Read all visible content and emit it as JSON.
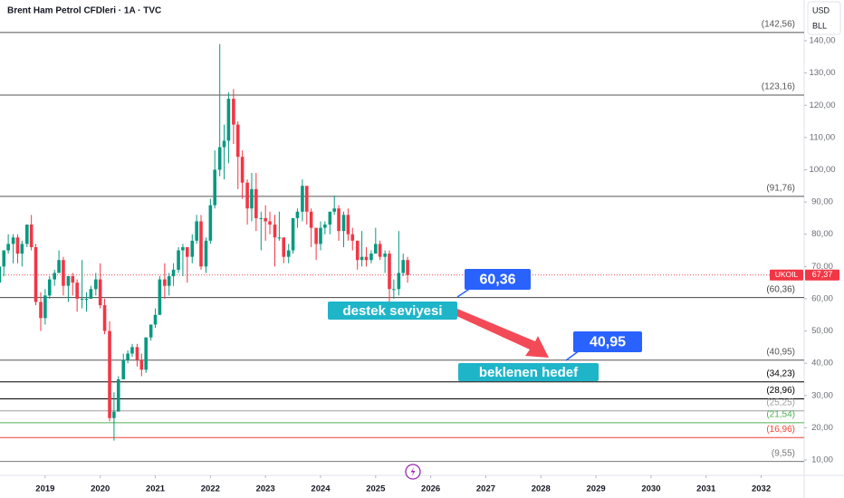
{
  "chart_data": {
    "type": "candlestick",
    "title": "Brent Ham Petrol CFDleri · 1A · TVC",
    "currency": "USD",
    "unit": "BLL",
    "up_color": "#089981",
    "down_color": "#f23645",
    "x": [
      2018.17,
      2018.25,
      2018.33,
      2018.42,
      2018.5,
      2018.58,
      2018.67,
      2018.75,
      2018.83,
      2018.92,
      2019.0,
      2019.08,
      2019.17,
      2019.25,
      2019.33,
      2019.42,
      2019.5,
      2019.58,
      2019.67,
      2019.75,
      2019.83,
      2019.92,
      2020.0,
      2020.08,
      2020.17,
      2020.25,
      2020.33,
      2020.42,
      2020.5,
      2020.58,
      2020.67,
      2020.75,
      2020.83,
      2020.92,
      2021.0,
      2021.08,
      2021.17,
      2021.25,
      2021.33,
      2021.42,
      2021.5,
      2021.58,
      2021.67,
      2021.75,
      2021.83,
      2021.92,
      2022.0,
      2022.08,
      2022.17,
      2022.25,
      2022.33,
      2022.42,
      2022.5,
      2022.58,
      2022.67,
      2022.75,
      2022.83,
      2022.92,
      2023.0,
      2023.08,
      2023.17,
      2023.25,
      2023.33,
      2023.42,
      2023.5,
      2023.58,
      2023.67,
      2023.75,
      2023.83,
      2023.92,
      2024.0,
      2024.08,
      2024.17,
      2024.25,
      2024.33,
      2024.42,
      2024.5,
      2024.58,
      2024.67,
      2024.75,
      2024.83,
      2024.92,
      2025.0,
      2025.08,
      2025.17,
      2025.25,
      2025.33,
      2025.42,
      2025.5,
      2025.58
    ],
    "open": [
      65,
      70,
      75,
      77,
      79,
      74,
      77,
      83,
      76,
      59,
      54,
      61,
      66,
      68,
      72,
      64,
      67,
      65,
      60,
      60,
      60,
      63,
      66,
      58,
      50,
      23,
      25,
      35,
      41,
      43,
      45,
      41,
      38,
      48,
      52,
      55,
      66,
      64,
      67,
      69,
      75,
      76,
      73,
      78,
      84,
      70,
      78,
      89,
      100,
      107,
      109,
      122,
      114,
      104,
      96,
      88,
      94,
      85,
      85,
      84,
      83,
      79,
      79,
      73,
      75,
      85,
      87,
      95,
      87,
      82,
      77,
      82,
      83,
      87,
      88,
      81,
      86,
      80,
      78,
      72,
      73,
      72,
      74,
      77,
      73,
      74,
      63,
      63,
      68,
      72
    ],
    "high": [
      71,
      75,
      80,
      80,
      80,
      78,
      83,
      86,
      77,
      62,
      63,
      67,
      69,
      75,
      73,
      66,
      68,
      66,
      72,
      62,
      64,
      68,
      71,
      60,
      53,
      31,
      36,
      43,
      44,
      46,
      46,
      43,
      48,
      52,
      57,
      67,
      71,
      68,
      71,
      76,
      77,
      76,
      80,
      86,
      86,
      79,
      91,
      106,
      139,
      114,
      124,
      125,
      115,
      106,
      97,
      99,
      99,
      87,
      89,
      87,
      86,
      87,
      79,
      77,
      85,
      88,
      97,
      95,
      88,
      81,
      84,
      84,
      87,
      92,
      89,
      87,
      88,
      82,
      78,
      81,
      76,
      75,
      82,
      78,
      75,
      75,
      66,
      81,
      74,
      73
    ],
    "low": [
      62,
      67,
      74,
      71,
      71,
      70,
      76,
      75,
      58,
      50,
      52,
      60,
      64,
      68,
      61,
      59,
      61,
      56,
      57,
      56,
      60,
      61,
      57,
      49,
      22,
      16,
      25,
      35,
      40,
      42,
      39,
      36,
      37,
      47,
      51,
      55,
      60,
      61,
      64,
      68,
      67,
      65,
      71,
      77,
      69,
      68,
      77,
      88,
      98,
      97,
      102,
      108,
      94,
      91,
      83,
      84,
      81,
      75,
      78,
      80,
      70,
      78,
      71,
      71,
      74,
      82,
      84,
      83,
      76,
      72,
      75,
      80,
      80,
      86,
      78,
      76,
      78,
      75,
      69,
      70,
      70,
      71,
      74,
      72,
      68,
      58,
      60,
      61,
      67,
      65
    ],
    "close": [
      70,
      75,
      77,
      79,
      74,
      77,
      83,
      76,
      59,
      54,
      61,
      66,
      68,
      72,
      64,
      67,
      65,
      60,
      60,
      60,
      63,
      66,
      58,
      50,
      23,
      25,
      35,
      41,
      43,
      45,
      41,
      38,
      48,
      52,
      55,
      66,
      64,
      67,
      69,
      75,
      76,
      73,
      78,
      84,
      70,
      78,
      89,
      100,
      107,
      109,
      122,
      114,
      104,
      96,
      88,
      94,
      85,
      85,
      84,
      83,
      79,
      79,
      73,
      75,
      85,
      87,
      95,
      87,
      82,
      77,
      82,
      83,
      87,
      88,
      81,
      86,
      80,
      78,
      72,
      73,
      72,
      74,
      77,
      73,
      74,
      63,
      63,
      68,
      72,
      67.37
    ],
    "xlim": [
      2018.18,
      2032.78
    ],
    "xticks": [
      2019,
      2020,
      2021,
      2022,
      2023,
      2024,
      2025,
      2026,
      2027,
      2028,
      2029,
      2030,
      2031,
      2032
    ],
    "ylim": [
      5.23,
      152.64
    ],
    "yticks": [
      {
        "value": 10,
        "label": "10,00"
      },
      {
        "value": 20,
        "label": "20,00"
      },
      {
        "value": 30,
        "label": "30,00"
      },
      {
        "value": 40,
        "label": "40,00"
      },
      {
        "value": 50,
        "label": "50,00"
      },
      {
        "value": 60,
        "label": "60,00"
      },
      {
        "value": 70,
        "label": "70,00"
      },
      {
        "value": 80,
        "label": "80,00"
      },
      {
        "value": 90,
        "label": "90,00"
      },
      {
        "value": 100,
        "label": "100,00"
      },
      {
        "value": 110,
        "label": "110,00"
      },
      {
        "value": 120,
        "label": "120,00"
      },
      {
        "value": 130,
        "label": "130,00"
      },
      {
        "value": 140,
        "label": "140,00"
      }
    ],
    "levels": [
      {
        "value": 142.56,
        "label": "(142,56)",
        "color": "#555555"
      },
      {
        "value": 123.16,
        "label": "(123,16)",
        "color": "#555555"
      },
      {
        "value": 91.76,
        "label": "(91,76)",
        "color": "#555555"
      },
      {
        "value": 60.36,
        "label": "(60,36)",
        "color": "#444444"
      },
      {
        "value": 40.95,
        "label": "(40,95)",
        "color": "#555555"
      },
      {
        "value": 34.23,
        "label": "(34,23)",
        "color": "#000000"
      },
      {
        "value": 28.96,
        "label": "(28,96)",
        "color": "#000000"
      },
      {
        "value": 25.25,
        "label": "(25,25)",
        "color": "#9e9e9e"
      },
      {
        "value": 21.54,
        "label": "(21,54)",
        "color": "#4caf50"
      },
      {
        "value": 16.96,
        "label": "(16,96)",
        "color": "#f44336"
      },
      {
        "value": 9.55,
        "label": "(9,55)",
        "color": "#777777"
      }
    ],
    "last_price": {
      "symbol": "UKOIL",
      "value": 67.37,
      "label": "67,37"
    },
    "annotations": [
      "60,36",
      "destek seviyesi",
      "40,95",
      "beklenen hedef"
    ]
  }
}
